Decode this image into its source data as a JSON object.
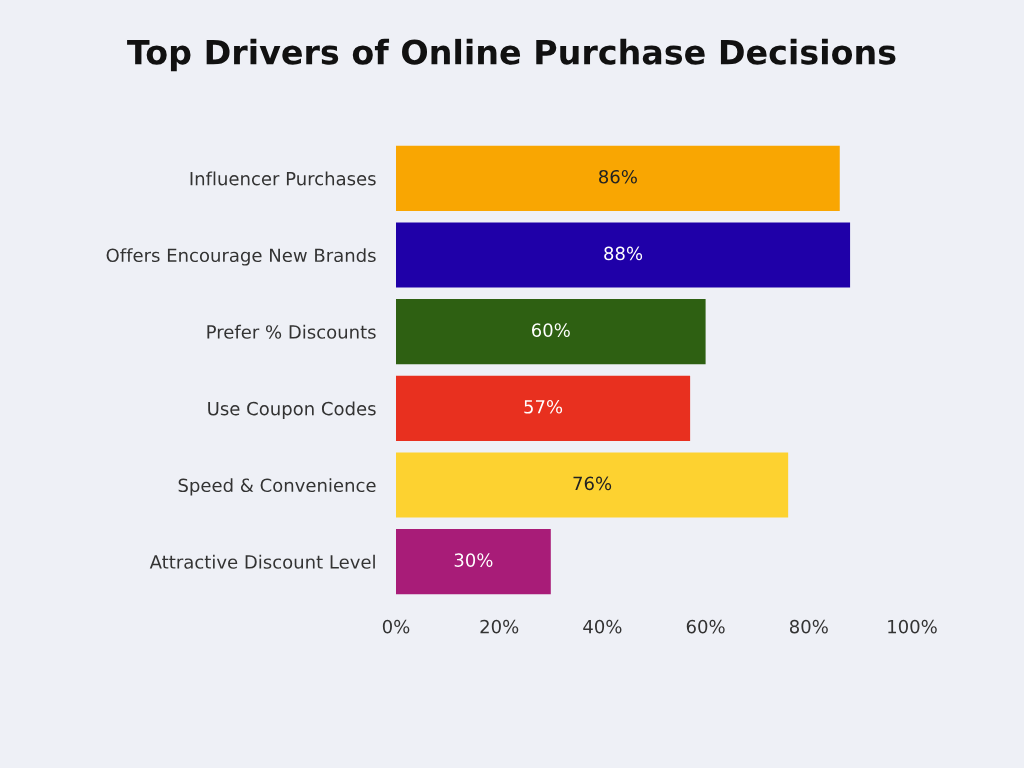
{
  "chart_data": {
    "type": "bar",
    "orientation": "horizontal",
    "title": "Top Drivers of Online Purchase Decisions",
    "categories": [
      "Influencer Purchases",
      "Offers Encourage New Brands",
      "Prefer % Discounts",
      "Use Coupon Codes",
      "Speed & Convenience",
      "Attractive Discount Level"
    ],
    "values": [
      86,
      88,
      60,
      57,
      76,
      30
    ],
    "colors": [
      "#f9a602",
      "#1f00a8",
      "#2e6012",
      "#e8301f",
      "#fdd230",
      "#a81c78"
    ],
    "value_labels": [
      "86%",
      "88%",
      "60%",
      "57%",
      "76%",
      "30%"
    ],
    "xlim": [
      0,
      100
    ],
    "xticks": [
      {
        "value": 0,
        "label": "0%"
      },
      {
        "value": 20,
        "label": "20%"
      },
      {
        "value": 40,
        "label": "40%"
      },
      {
        "value": 60,
        "label": "60%"
      },
      {
        "value": 80,
        "label": "80%"
      },
      {
        "value": 100,
        "label": "100%"
      }
    ],
    "grid": false
  }
}
